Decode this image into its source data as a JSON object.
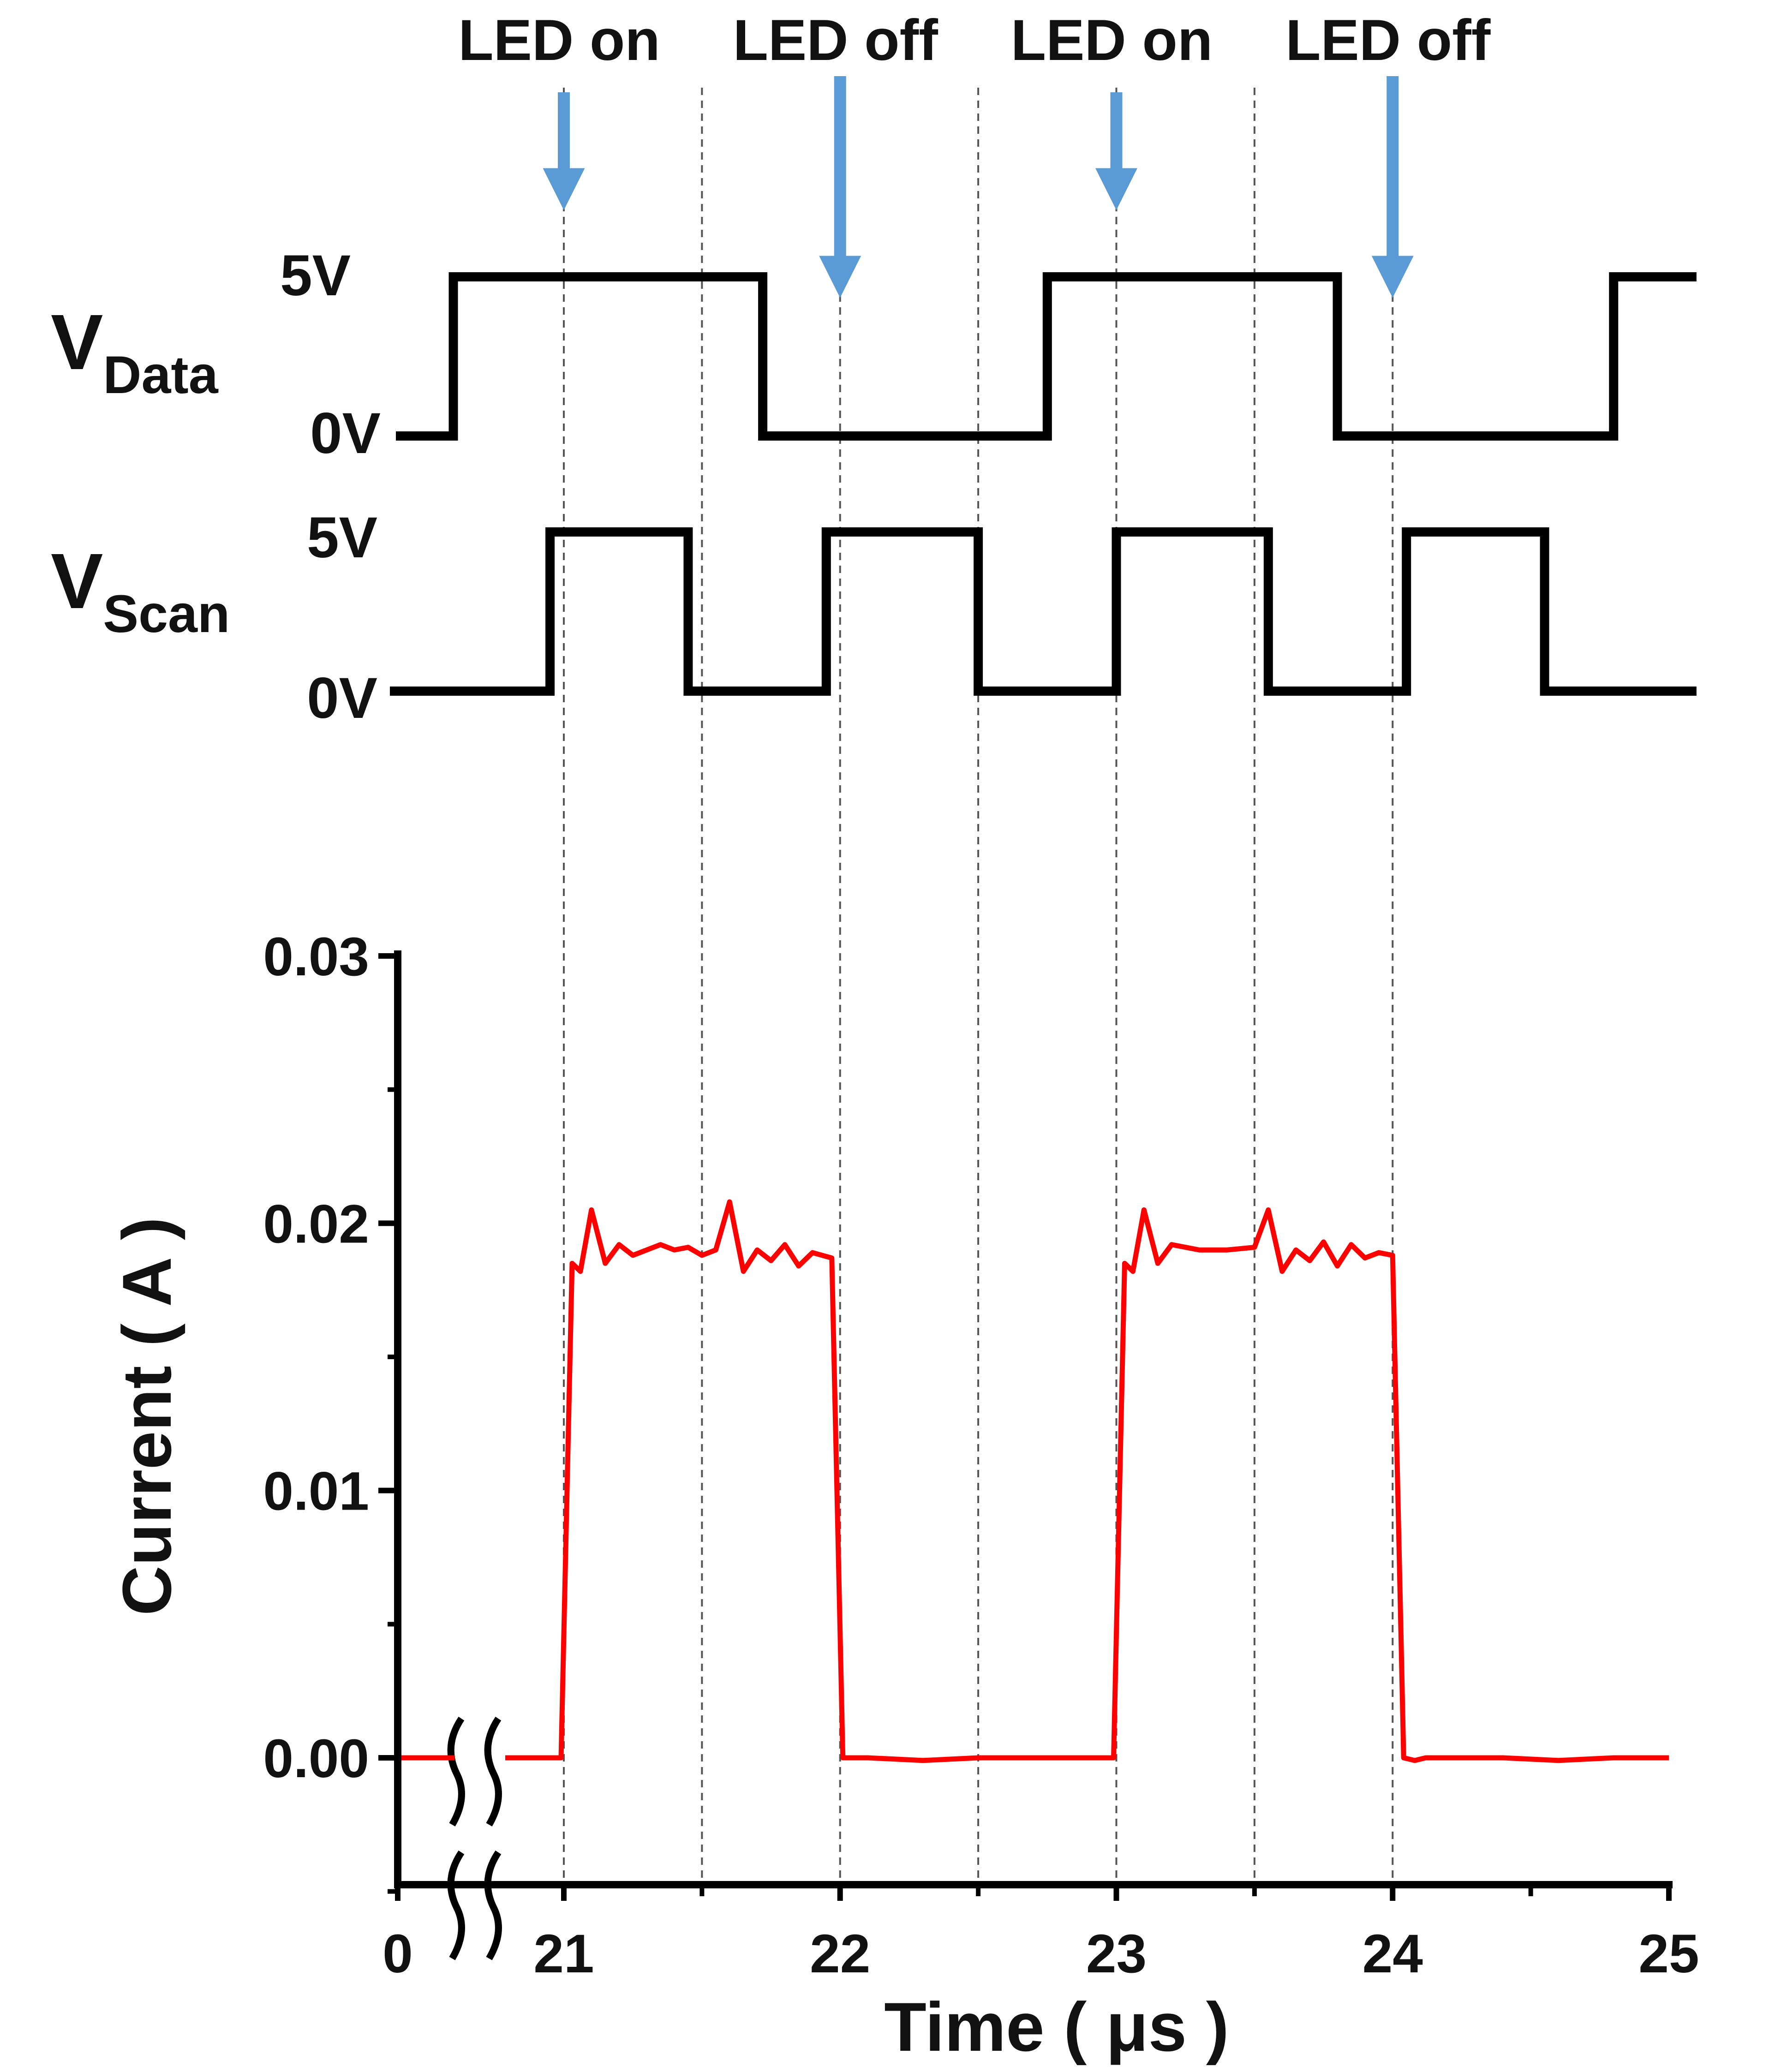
{
  "annotations": {
    "arrows": [
      {
        "label": "LED on",
        "time": 21.0
      },
      {
        "label": "LED off",
        "time": 22.0
      },
      {
        "label": "LED on",
        "time": 23.0
      },
      {
        "label": "LED off",
        "time": 24.0
      }
    ],
    "arrow_color": "#5b9bd5"
  },
  "vdata": {
    "label_main": "V",
    "label_sub": "Data",
    "high_label": "5V",
    "low_label": "0V",
    "high_level": 5,
    "low_level": 0,
    "steps": [
      {
        "t": 20.35,
        "level": 0
      },
      {
        "t": 20.6,
        "level": 5
      },
      {
        "t": 21.72,
        "level": 0
      },
      {
        "t": 22.75,
        "level": 5
      },
      {
        "t": 23.8,
        "level": 0
      },
      {
        "t": 24.8,
        "level": 5
      }
    ],
    "t_end": 25.1
  },
  "vscan": {
    "label_main": "V",
    "label_sub": "Scan",
    "high_label": "5V",
    "low_label": "0V",
    "high_level": 5,
    "low_level": 0,
    "steps": [
      {
        "t": 20.35,
        "level": 0
      },
      {
        "t": 20.95,
        "level": 5
      },
      {
        "t": 21.45,
        "level": 0
      },
      {
        "t": 21.95,
        "level": 5
      },
      {
        "t": 22.5,
        "level": 0
      },
      {
        "t": 23.0,
        "level": 5
      },
      {
        "t": 23.55,
        "level": 0
      },
      {
        "t": 24.05,
        "level": 5
      },
      {
        "t": 24.55,
        "level": 0
      }
    ],
    "t_end": 25.1
  },
  "guide_times": [
    21.0,
    21.5,
    22.0,
    22.5,
    23.0,
    23.5,
    24.0
  ],
  "chart_data": {
    "type": "line",
    "title": "",
    "xlabel": "Time ( μs )",
    "ylabel": "Current ( A )",
    "ylim": [
      -0.005,
      0.03
    ],
    "y_ticks": [
      0.0,
      0.01,
      0.02,
      0.03
    ],
    "y_tick_labels": [
      "0.00",
      "0.01",
      "0.02",
      "0.03"
    ],
    "x_tick_labels": [
      "0",
      "21",
      "22",
      "23",
      "24",
      "25"
    ],
    "x_tick_values": [
      0,
      21,
      22,
      23,
      24,
      25
    ],
    "x_axis_break": "between 0 and 21",
    "series": [
      {
        "color": "#ff0000",
        "x": [
          20.0,
          20.99,
          21.03,
          21.06,
          21.1,
          21.15,
          21.2,
          21.25,
          21.3,
          21.35,
          21.4,
          21.45,
          21.5,
          21.55,
          21.6,
          21.65,
          21.7,
          21.75,
          21.8,
          21.85,
          21.9,
          21.97,
          22.01,
          22.05,
          22.1,
          22.3,
          22.5,
          22.7,
          22.99,
          23.03,
          23.06,
          23.1,
          23.15,
          23.2,
          23.3,
          23.4,
          23.5,
          23.55,
          23.6,
          23.65,
          23.7,
          23.75,
          23.8,
          23.85,
          23.9,
          23.95,
          24.0,
          24.04,
          24.08,
          24.12,
          24.2,
          24.4,
          24.6,
          24.8,
          25.0
        ],
        "values": [
          0.0,
          0.0,
          0.0185,
          0.0182,
          0.0205,
          0.0185,
          0.0192,
          0.0188,
          0.019,
          0.0192,
          0.019,
          0.0191,
          0.0188,
          0.019,
          0.0208,
          0.0182,
          0.019,
          0.0186,
          0.0192,
          0.0184,
          0.0189,
          0.0187,
          0.0,
          0.0,
          0.0,
          -0.0001,
          0.0,
          0.0,
          0.0,
          0.0185,
          0.0182,
          0.0205,
          0.0185,
          0.0192,
          0.019,
          0.019,
          0.0191,
          0.0205,
          0.0182,
          0.019,
          0.0186,
          0.0193,
          0.0184,
          0.0192,
          0.0187,
          0.0189,
          0.0188,
          0.0,
          -0.0001,
          0.0,
          0.0,
          0.0,
          -0.0001,
          0.0,
          0.0
        ]
      }
    ],
    "grid": false
  }
}
